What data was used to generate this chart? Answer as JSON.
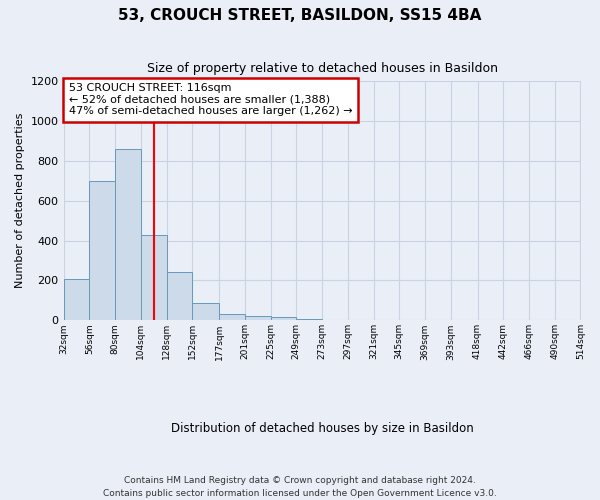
{
  "title": "53, CROUCH STREET, BASILDON, SS15 4BA",
  "subtitle": "Size of property relative to detached houses in Basildon",
  "xlabel": "Distribution of detached houses by size in Basildon",
  "ylabel": "Number of detached properties",
  "footer": "Contains HM Land Registry data © Crown copyright and database right 2024.\nContains public sector information licensed under the Open Government Licence v3.0.",
  "bin_labels": [
    "32sqm",
    "56sqm",
    "80sqm",
    "104sqm",
    "128sqm",
    "152sqm",
    "177sqm",
    "201sqm",
    "225sqm",
    "249sqm",
    "273sqm",
    "297sqm",
    "321sqm",
    "345sqm",
    "369sqm",
    "393sqm",
    "418sqm",
    "442sqm",
    "466sqm",
    "490sqm",
    "514sqm"
  ],
  "bar_values": [
    205,
    700,
    860,
    430,
    240,
    85,
    30,
    20,
    15,
    8,
    3,
    2,
    0,
    0,
    0,
    0,
    0,
    0,
    0,
    0
  ],
  "bar_color": "#ccdaea",
  "bar_edge_color": "#6699bb",
  "ylim": [
    0,
    1200
  ],
  "yticks": [
    0,
    200,
    400,
    600,
    800,
    1000,
    1200
  ],
  "property_line_x": 116,
  "bin_edges": [
    32,
    56,
    80,
    104,
    128,
    152,
    177,
    201,
    225,
    249,
    273,
    297,
    321,
    345,
    369,
    393,
    418,
    442,
    466,
    490,
    514
  ],
  "annotation_text": "53 CROUCH STREET: 116sqm\n← 52% of detached houses are smaller (1,388)\n47% of semi-detached houses are larger (1,262) →",
  "annotation_box_color": "#ffffff",
  "annotation_box_edge_color": "#cc0000",
  "grid_color": "#c8d4e4",
  "background_color": "#eaeff7"
}
